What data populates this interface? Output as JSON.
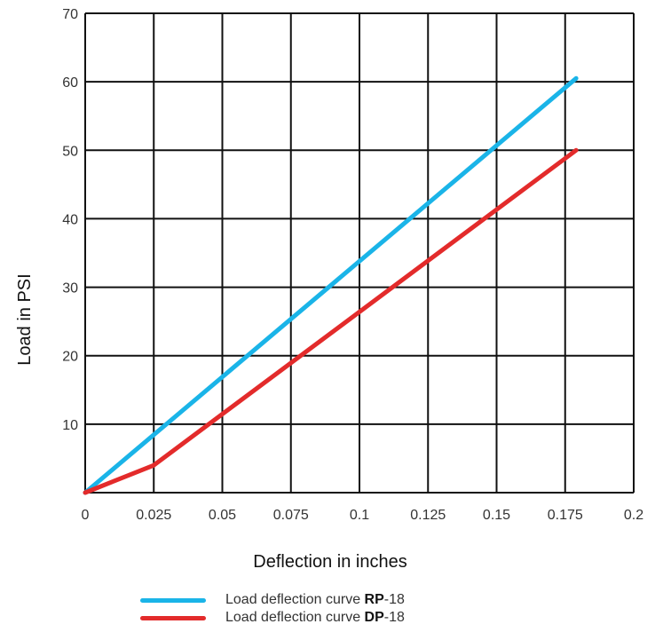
{
  "chart_data": {
    "type": "line",
    "xlabel": "Deflection in inches",
    "ylabel": "Load in PSI",
    "xlim": [
      0,
      0.2
    ],
    "ylim": [
      0,
      70
    ],
    "x_ticks": [
      "0",
      "0.025",
      "0.05",
      "0.075",
      "0.1",
      "0.125",
      "0.15",
      "0.175",
      "0.2"
    ],
    "y_ticks": [
      "10",
      "20",
      "30",
      "40",
      "50",
      "60",
      "70"
    ],
    "grid": true,
    "legend_position": "bottom",
    "series": [
      {
        "name": "Load deflection curve RP-18",
        "legend_prefix": "Load deflection curve ",
        "legend_bold": "RP",
        "legend_suffix": "-18",
        "color": "#1ab4e8",
        "points": [
          [
            0,
            0
          ],
          [
            0.179,
            60.5
          ]
        ]
      },
      {
        "name": "Load deflection curve DP-18",
        "legend_prefix": "Load deflection curve ",
        "legend_bold": "DP",
        "legend_suffix": "-18",
        "color": "#e32b2b",
        "points": [
          [
            0,
            0
          ],
          [
            0.025,
            4
          ],
          [
            0.179,
            50
          ]
        ]
      }
    ]
  }
}
